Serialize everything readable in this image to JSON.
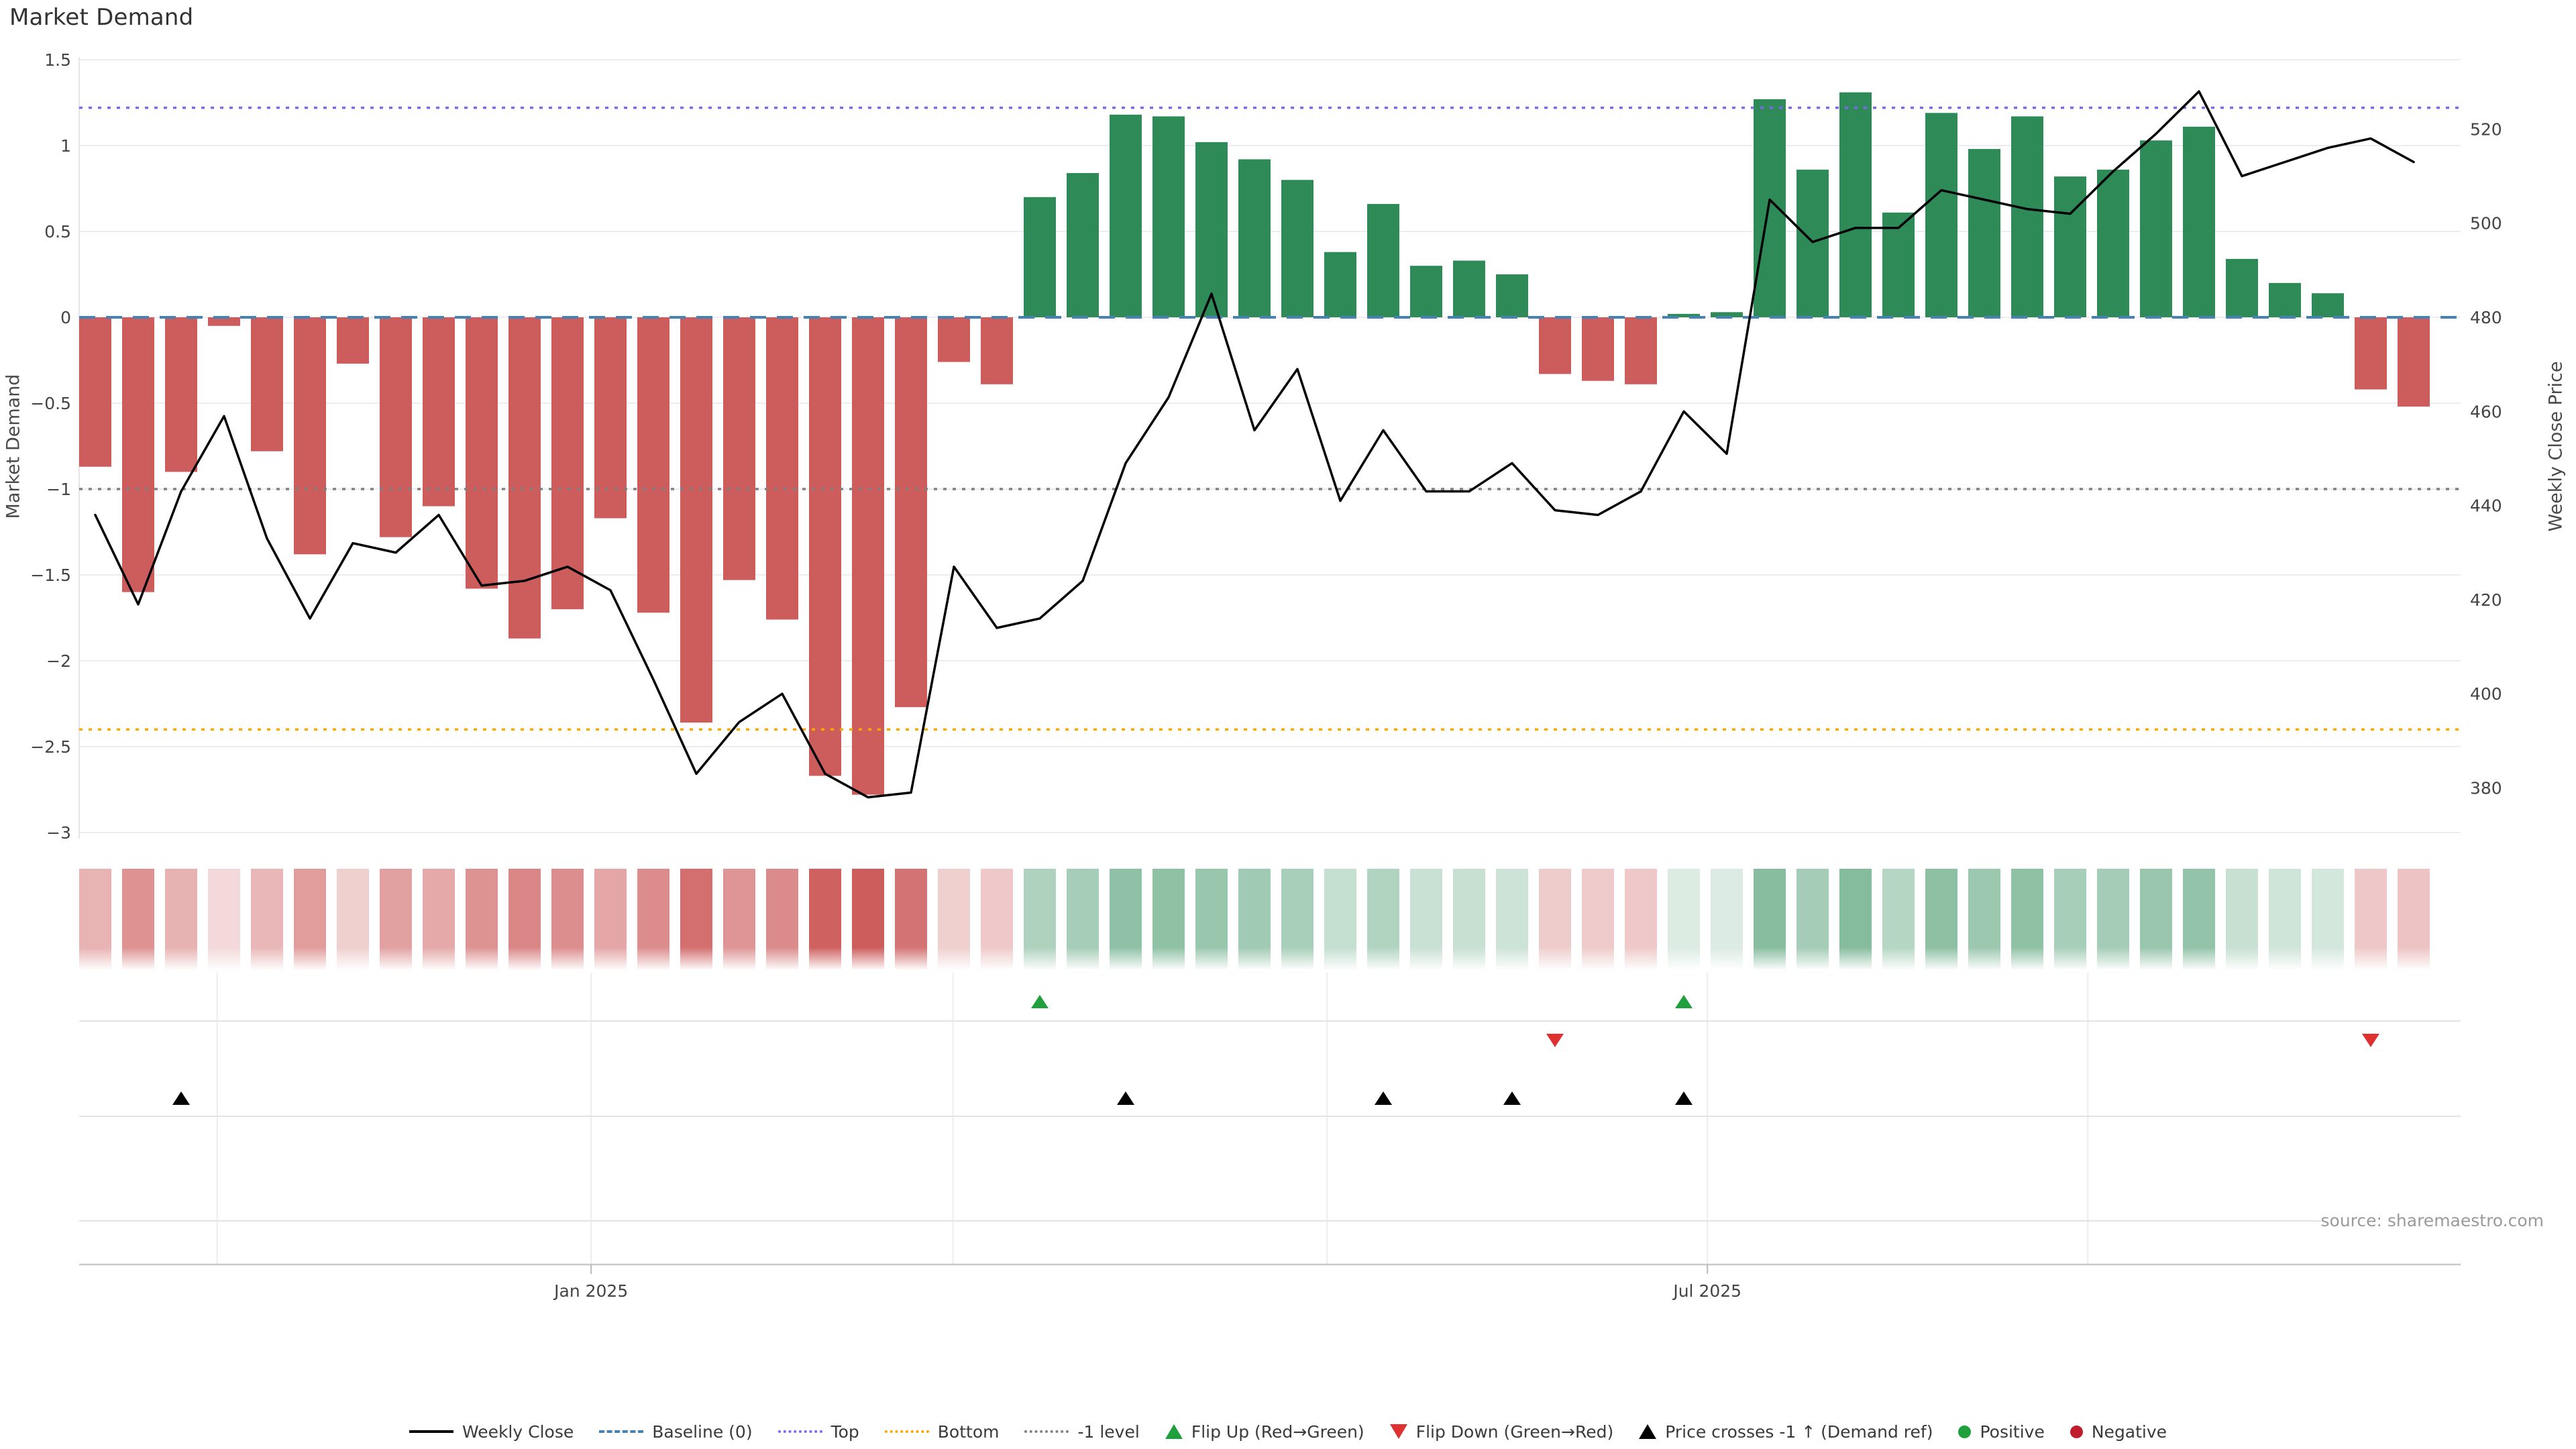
{
  "title": "Market Demand",
  "source_text": "source: sharemaestro.com",
  "axes": {
    "left_label": "Market Demand",
    "right_label": "Weekly Close Price",
    "left_ticks": [
      {
        "label": "1.5",
        "value": 1.5
      },
      {
        "label": "1",
        "value": 1.0
      },
      {
        "label": "0.5",
        "value": 0.5
      },
      {
        "label": "0",
        "value": 0.0
      },
      {
        "label": "−0.5",
        "value": -0.5
      },
      {
        "label": "−1",
        "value": -1.0
      },
      {
        "label": "−1.5",
        "value": -1.5
      },
      {
        "label": "−2",
        "value": -2.0
      },
      {
        "label": "−2.5",
        "value": -2.5
      },
      {
        "label": "−3",
        "value": -3.0
      }
    ],
    "right_ticks": [
      {
        "label": "520",
        "value": 520
      },
      {
        "label": "500",
        "value": 500
      },
      {
        "label": "480",
        "value": 480
      },
      {
        "label": "460",
        "value": 460
      },
      {
        "label": "440",
        "value": 440
      },
      {
        "label": "420",
        "value": 420
      },
      {
        "label": "400",
        "value": 400
      },
      {
        "label": "380",
        "value": 380
      }
    ]
  },
  "colors": {
    "bar_negative": "#CD5C5C",
    "bar_positive": "#2E8B57",
    "price_line": "#000000",
    "baseline": "#4682B4",
    "top_line": "#7B68EE",
    "bottom_line": "#FFA500",
    "minus1_line": "#808080",
    "grid": "#ECECF2",
    "panel_grid": "#E3E3E6",
    "panel_vgrid": "#EDEDED",
    "axis_line": "#C9C9C9",
    "flip_up": "#1FA03C",
    "flip_down": "#E03131",
    "price_cross": "#000000",
    "positive_dot": "#1FA03C",
    "negative_dot": "#C01E2E",
    "tick_text": "#444444",
    "source_text": "#9A9A9A",
    "title_text": "#333333"
  },
  "legend": [
    {
      "glyph": "line",
      "color": "#000000",
      "label": "Weekly Close"
    },
    {
      "glyph": "dash",
      "color": "#4682B4",
      "label": "Baseline (0)"
    },
    {
      "glyph": "dot",
      "color": "#7B68EE",
      "label": "Top"
    },
    {
      "glyph": "dot",
      "color": "#FFA500",
      "label": "Bottom"
    },
    {
      "glyph": "dot",
      "color": "#808080",
      "label": "-1 level"
    },
    {
      "glyph": "tri-up",
      "color": "#1FA03C",
      "label": "Flip Up (Red→Green)"
    },
    {
      "glyph": "tri-down",
      "color": "#E03131",
      "label": "Flip Down (Green→Red)"
    },
    {
      "glyph": "tri-up",
      "color": "#000000",
      "label": "Price crosses -1 ↑ (Demand ref)"
    },
    {
      "glyph": "circle",
      "color": "#1FA03C",
      "label": "Positive"
    },
    {
      "glyph": "circle",
      "color": "#C01E2E",
      "label": "Negative"
    }
  ],
  "chart_data": {
    "type": "bar+line dual-axis weekly",
    "frequency": "weekly",
    "start_week": "2024-10-14",
    "series": [
      {
        "name": "Market Demand",
        "axis": "left",
        "type": "bar",
        "values": [
          -0.87,
          -1.6,
          -0.9,
          -0.05,
          -0.78,
          -1.38,
          -0.27,
          -1.28,
          -1.1,
          -1.58,
          -1.87,
          -1.7,
          -1.17,
          -1.72,
          -2.36,
          -1.53,
          -1.76,
          -2.67,
          -2.78,
          -2.27,
          -0.26,
          -0.39,
          0.7,
          0.84,
          1.18,
          1.17,
          1.02,
          0.92,
          0.8,
          0.38,
          0.66,
          0.3,
          0.33,
          0.25,
          -0.33,
          -0.37,
          -0.39,
          0.02,
          0.03,
          1.27,
          0.86,
          1.31,
          0.61,
          1.19,
          0.98,
          1.17,
          0.82,
          0.86,
          1.03,
          1.11,
          0.34,
          0.2,
          0.14,
          -0.42,
          -0.52
        ]
      },
      {
        "name": "Weekly Close",
        "axis": "right",
        "type": "line",
        "values": [
          438,
          419,
          443,
          459,
          433,
          416,
          432,
          430,
          438,
          423,
          424,
          427,
          422,
          403,
          383,
          394,
          400,
          383,
          378,
          379,
          427,
          414,
          416,
          424,
          449,
          463,
          485,
          456,
          469,
          441,
          456,
          443,
          443,
          449,
          439,
          438,
          443,
          460,
          451,
          505,
          496,
          499,
          499,
          507,
          505,
          503,
          502,
          511,
          519,
          528,
          510,
          513,
          516,
          518,
          513
        ]
      }
    ],
    "reference_lines": {
      "baseline": 0,
      "top": 1.22,
      "bottom": -2.4,
      "minus1_level": -1
    },
    "left_ylim": [
      -3.05,
      1.52
    ],
    "right_ylim": [
      369,
      535
    ],
    "x_ticks": [
      {
        "label": "Jan 2025",
        "week": 11.55
      },
      {
        "label": "Jul 2025",
        "week": 37.55
      }
    ],
    "month_gridline_weeks": [
      2.84,
      11.55,
      19.98,
      28.69,
      37.55,
      46.41
    ],
    "flip_up_weeks": [
      22,
      37
    ],
    "flip_down_weeks": [
      34,
      53
    ],
    "price_cross_minus1_weeks": [
      2,
      24,
      30,
      33,
      37
    ],
    "heat_strip": {
      "encodes": "Market Demand value per week",
      "negative_base_color": "#CD5C5C",
      "positive_base_color": "#2E8B57"
    }
  }
}
